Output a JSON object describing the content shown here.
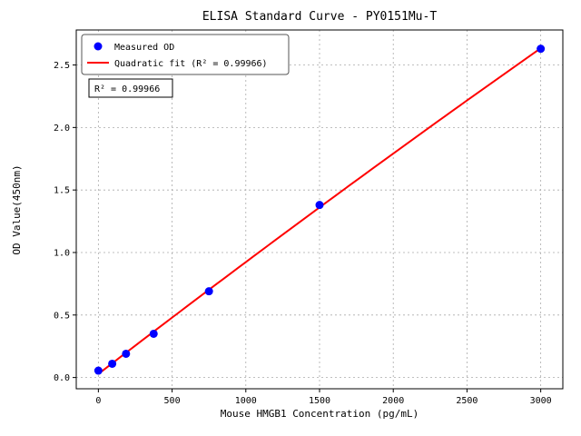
{
  "figure": {
    "background": "#ffffff",
    "axis_color": "#000000",
    "grid_color": "#aaaaaa"
  },
  "chart_data": {
    "type": "scatter",
    "title": "ELISA Standard Curve - PY0151Mu-T",
    "xlabel": "Mouse HMGB1 Concentration (pg/mL)",
    "ylabel": "OD Value(450nm)",
    "xlim": [
      -150,
      3150
    ],
    "ylim": [
      -0.09,
      2.78
    ],
    "x_ticks": [
      0,
      500,
      1000,
      1500,
      2000,
      2500,
      3000
    ],
    "y_ticks": [
      0.0,
      0.5,
      1.0,
      1.5,
      2.0,
      2.5
    ],
    "grid": true,
    "legend_position": "upper left",
    "series": [
      {
        "name": "Measured OD",
        "type": "scatter",
        "color": "#0000ff",
        "x": [
          0,
          93.75,
          187.5,
          375,
          750,
          1500,
          3000
        ],
        "y": [
          0.055,
          0.11,
          0.19,
          0.35,
          0.69,
          1.38,
          2.63
        ]
      },
      {
        "name": "Quadratic fit (R² = 0.99966)",
        "type": "quadratic-fit",
        "color": "#ff0000"
      }
    ],
    "annotation": "R² = 0.99966"
  }
}
